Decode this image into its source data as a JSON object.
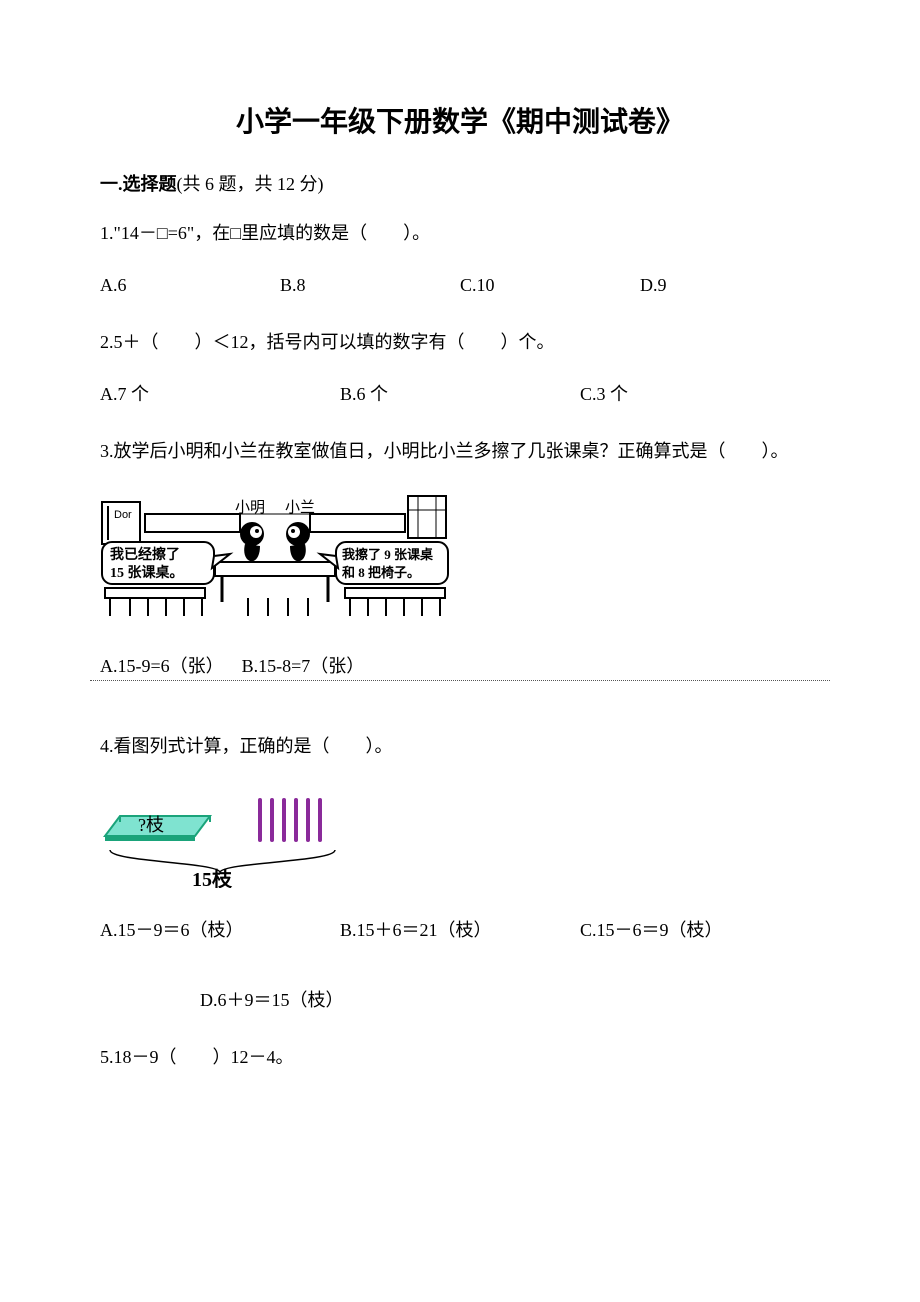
{
  "title": "小学一年级下册数学《期中测试卷》",
  "section1": {
    "label_bold": "一.选择题",
    "label_rest": "(共 6 题，共 12 分)"
  },
  "q1": {
    "text": "1.\"14－□=6\"，在□里应填的数是（　　）。",
    "optA": "A.6",
    "optB": "B.8",
    "optC": "C.10",
    "optD": "D.9"
  },
  "q2": {
    "text": "2.5＋（　　）＜12，括号内可以填的数字有（　　）个。",
    "optA": "A.7 个",
    "optB": "B.6 个",
    "optC": "C.3 个"
  },
  "q3": {
    "text": "3.放学后小明和小兰在教室做值日，小明比小兰多擦了几张课桌？正确算式是（　　）。",
    "fig": {
      "name_left": "小明",
      "name_right": "小兰",
      "door_label": "Dor",
      "bubble_left_l1": "我已经擦了",
      "bubble_left_l2": "15 张课桌。",
      "bubble_right_l1": "我擦了 9 张课桌",
      "bubble_right_l2": "和 8 把椅子。"
    },
    "optA": "A.15-9=6（张）",
    "optB": "B.15-8=7（张）"
  },
  "q4": {
    "text": "4.看图列式计算，正确的是（　　）。",
    "fig": {
      "box_label": "?枝",
      "total_label": "15枝",
      "stick_count": 6,
      "stick_color": "#8a2a9a",
      "box_fill": "#7fe3d0",
      "box_stroke": "#1aa37a"
    },
    "optA": "A.15－9＝6（枝）",
    "optB": "B.15＋6＝21（枝）",
    "optC": "C.15－6＝9（枝）",
    "optD": "D.6＋9＝15（枝）"
  },
  "q5": {
    "text": "5.18－9（　　）12－4。"
  }
}
